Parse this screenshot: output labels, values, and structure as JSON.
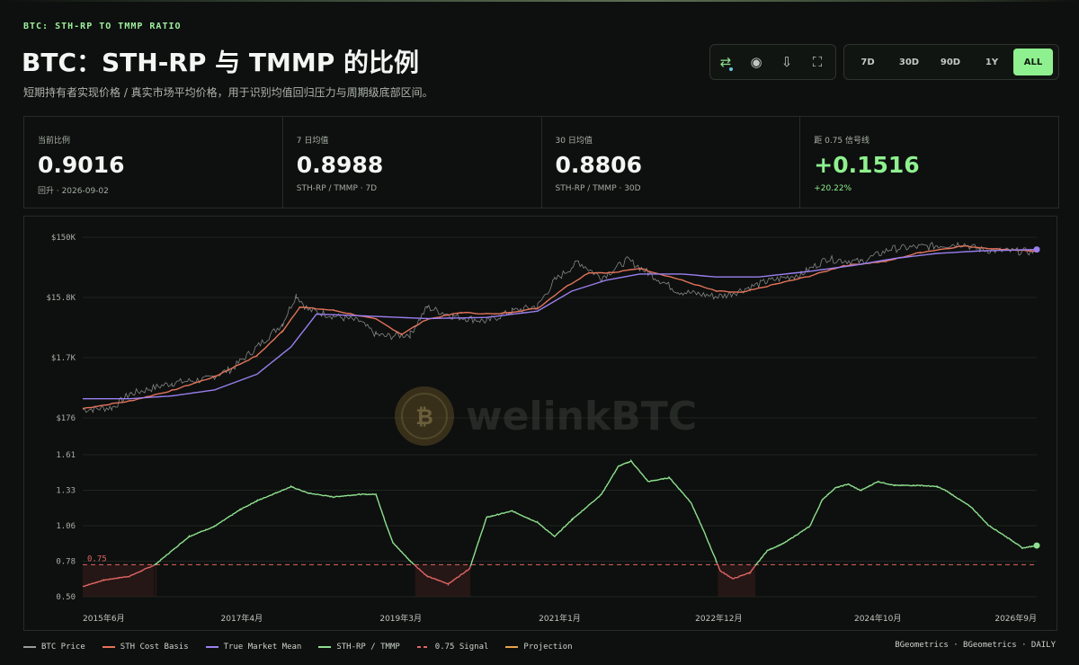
{
  "header": {
    "tag": "BTC: STH-RP TO TMMP RATIO",
    "title": "BTC：STH-RP 与 TMMP 的比例",
    "subtitle": "短期持有者实现价格 / 真实市场平均价格，用于识别均值回归压力与周期级底部区间。"
  },
  "toolbar": {
    "icons": [
      "swap-icon",
      "record-icon",
      "download-icon",
      "fullscreen-icon"
    ],
    "ranges": [
      "7D",
      "30D",
      "90D",
      "1Y",
      "ALL"
    ],
    "active_range": "ALL"
  },
  "stats": [
    {
      "label": "当前比例",
      "value": "0.9016",
      "sub": "回升 · 2026-09-02"
    },
    {
      "label": "7 日均值",
      "value": "0.8988",
      "sub": "STH-RP / TMMP · 7D"
    },
    {
      "label": "30 日均值",
      "value": "0.8806",
      "sub": "STH-RP / TMMP · 30D"
    },
    {
      "label": "距 0.75 信号线",
      "value": "+0.1516",
      "sub": "+20.22%"
    }
  ],
  "watermark": "welinkBTC",
  "chart_data": {
    "type": "line",
    "x_ticks": [
      "2015年6月",
      "2017年4月",
      "2019年3月",
      "2021年1月",
      "2022年12月",
      "2024年10月",
      "2026年9月"
    ],
    "price_panel": {
      "y_scale": "log",
      "y_ticks": [
        "$150K",
        "$15.8K",
        "$1.7K",
        "$176"
      ],
      "ylim": [
        176,
        150000
      ],
      "series": [
        {
          "name": "BTC Price",
          "color": "#9a9a9a",
          "x": [
            2015.45,
            2015.8,
            2016.0,
            2016.5,
            2016.9,
            2017.2,
            2017.5,
            2017.8,
            2017.96,
            2018.1,
            2018.4,
            2018.7,
            2018.9,
            2019.0,
            2019.3,
            2019.5,
            2019.8,
            2020.2,
            2020.5,
            2020.8,
            2021.0,
            2021.28,
            2021.55,
            2021.86,
            2022.1,
            2022.45,
            2022.9,
            2023.0,
            2023.5,
            2023.9,
            2024.2,
            2024.6,
            2024.96,
            2025.5,
            2025.8,
            2026.0,
            2026.3,
            2026.67
          ],
          "y": [
            240,
            260,
            430,
            650,
            750,
            1100,
            2500,
            6000,
            17500,
            10000,
            8000,
            6500,
            4000,
            3700,
            4000,
            11000,
            8000,
            6500,
            9500,
            11500,
            30000,
            60000,
            33000,
            65000,
            40000,
            20000,
            16500,
            17000,
            29000,
            38000,
            67000,
            60000,
            98000,
            110000,
            118000,
            95000,
            90000,
            88000
          ]
        },
        {
          "name": "STH Cost Basis",
          "color": "#e3735a",
          "x": [
            2015.45,
            2016.0,
            2016.5,
            2017.0,
            2017.5,
            2017.8,
            2018.0,
            2018.4,
            2018.9,
            2019.2,
            2019.5,
            2019.9,
            2020.3,
            2020.8,
            2021.1,
            2021.4,
            2021.7,
            2022.0,
            2022.4,
            2022.9,
            2023.2,
            2023.6,
            2024.0,
            2024.4,
            2024.9,
            2025.3,
            2025.8,
            2026.2,
            2026.67
          ],
          "y": [
            250,
            330,
            490,
            820,
            1800,
            4500,
            11000,
            9800,
            7000,
            4000,
            7000,
            9000,
            8500,
            10500,
            22000,
            40000,
            40000,
            47000,
            33000,
            20000,
            19000,
            26000,
            35000,
            52000,
            61000,
            85000,
            108000,
            97000,
            89000
          ]
        },
        {
          "name": "True Market Mean",
          "color": "#9b7ff0",
          "x": [
            2015.45,
            2016.0,
            2016.5,
            2017.0,
            2017.5,
            2017.9,
            2018.2,
            2018.9,
            2019.5,
            2020.2,
            2020.8,
            2021.2,
            2021.6,
            2022.0,
            2022.5,
            2022.9,
            2023.4,
            2024.0,
            2024.5,
            2025.0,
            2025.5,
            2026.0,
            2026.67
          ],
          "y": [
            360,
            360,
            400,
            500,
            900,
            2500,
            8500,
            7800,
            7200,
            7500,
            9500,
            20000,
            30000,
            38000,
            38000,
            34000,
            34000,
            42000,
            52000,
            68000,
            82000,
            90000,
            95000
          ]
        }
      ]
    },
    "ratio_panel": {
      "y_ticks": [
        "1.61",
        "1.33",
        "1.06",
        "0.78",
        "0.50"
      ],
      "ylim": [
        0.5,
        1.61
      ],
      "signal_level": 0.75,
      "signal_label": "0.75",
      "series": [
        {
          "name": "STH-RP / TMMP",
          "color": "#8fe08f",
          "x": [
            2015.45,
            2015.7,
            2016.0,
            2016.3,
            2016.7,
            2017.0,
            2017.3,
            2017.5,
            2017.9,
            2018.1,
            2018.4,
            2018.7,
            2018.9,
            2019.0,
            2019.1,
            2019.3,
            2019.5,
            2019.75,
            2020.0,
            2020.2,
            2020.5,
            2020.8,
            2021.0,
            2021.2,
            2021.55,
            2021.75,
            2021.9,
            2022.1,
            2022.35,
            2022.6,
            2022.75,
            2022.95,
            2023.1,
            2023.3,
            2023.5,
            2023.7,
            2024.0,
            2024.15,
            2024.3,
            2024.45,
            2024.6,
            2024.8,
            2025.0,
            2025.3,
            2025.5,
            2025.6,
            2025.9,
            2026.1,
            2026.4,
            2026.5,
            2026.67
          ],
          "y": [
            0.58,
            0.63,
            0.66,
            0.75,
            0.97,
            1.05,
            1.18,
            1.25,
            1.36,
            1.31,
            1.28,
            1.3,
            1.3,
            1.1,
            0.92,
            0.78,
            0.66,
            0.6,
            0.72,
            1.12,
            1.17,
            1.08,
            0.97,
            1.1,
            1.3,
            1.52,
            1.56,
            1.4,
            1.43,
            1.24,
            1.02,
            0.7,
            0.64,
            0.69,
            0.86,
            0.92,
            1.05,
            1.26,
            1.35,
            1.38,
            1.33,
            1.4,
            1.37,
            1.37,
            1.36,
            1.33,
            1.2,
            1.06,
            0.93,
            0.88,
            0.9
          ]
        }
      ]
    }
  },
  "legend": [
    {
      "label": "BTC Price",
      "color": "#9a9a9a"
    },
    {
      "label": "STH Cost Basis",
      "color": "#e3735a"
    },
    {
      "label": "True Market Mean",
      "color": "#9b7ff0"
    },
    {
      "label": "STH-RP / TMMP",
      "color": "#8fe08f"
    },
    {
      "label": "0.75 Signal",
      "color": "#e06464"
    },
    {
      "label": "Projection",
      "color": "#e8a24a"
    }
  ],
  "source": "BGeometrics · BGeometrics · DAILY"
}
